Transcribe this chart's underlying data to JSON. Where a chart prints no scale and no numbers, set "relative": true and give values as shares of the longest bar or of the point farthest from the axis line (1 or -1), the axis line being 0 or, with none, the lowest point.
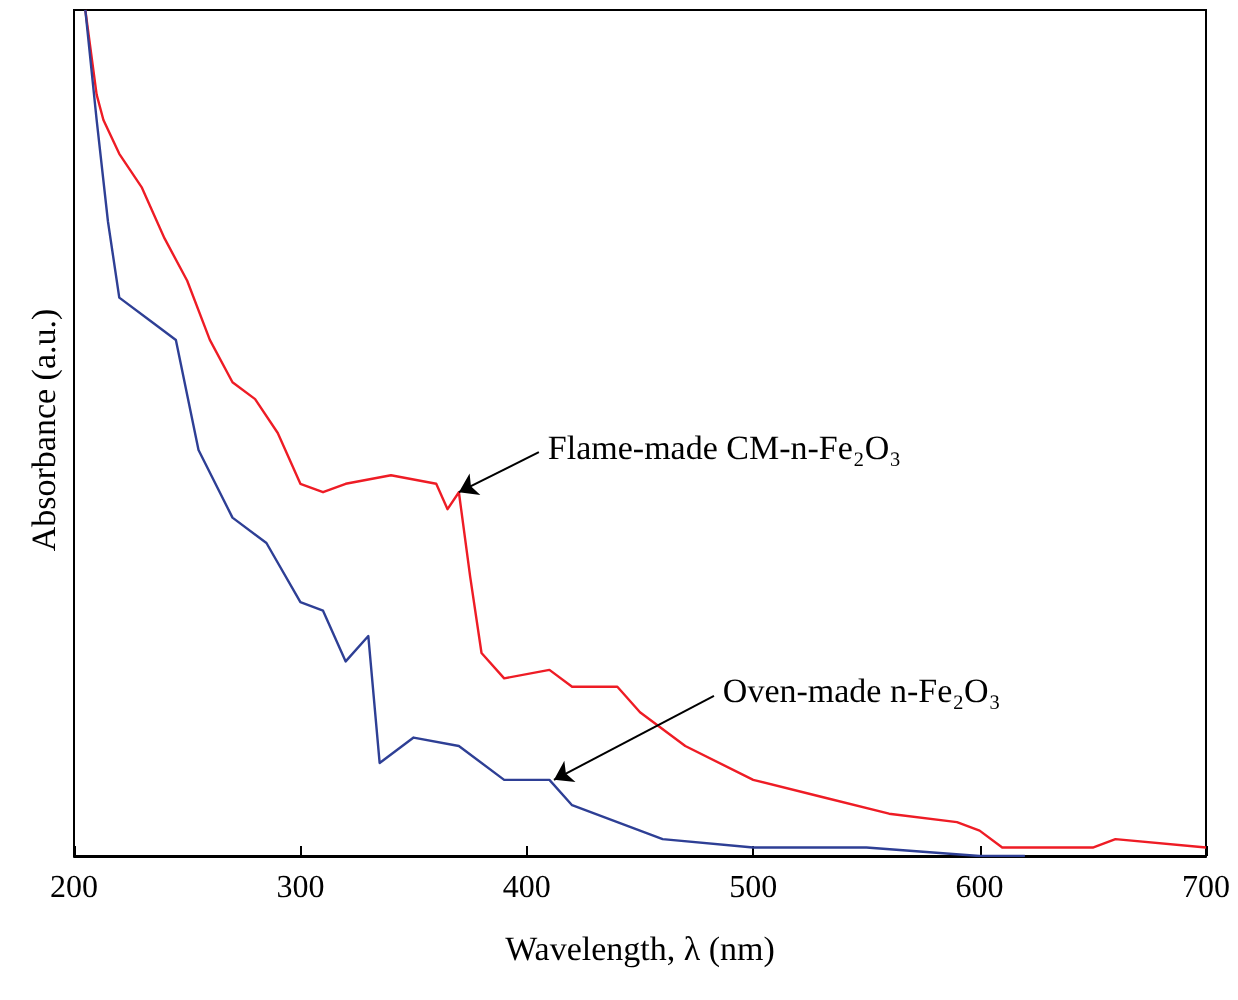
{
  "chart_data": {
    "type": "line",
    "xlabel": "Wavelength, λ (nm)",
    "ylabel": "Absorbance (a.u.)",
    "relative": true,
    "xlim": [
      200,
      700
    ],
    "xticks": [
      200,
      300,
      400,
      500,
      600,
      700
    ],
    "grid": false,
    "marker": "none",
    "line_style": "solid",
    "series": [
      {
        "color": "#ee1c25",
        "x": [
          205,
          210,
          213,
          220,
          230,
          240,
          250,
          260,
          270,
          280,
          290,
          300,
          310,
          320,
          340,
          360,
          365,
          370,
          375,
          380,
          390,
          410,
          420,
          440,
          450,
          470,
          500,
          530,
          560,
          590,
          600,
          610,
          650,
          660,
          700
        ],
        "values": [
          1.0,
          0.9,
          0.87,
          0.83,
          0.79,
          0.73,
          0.68,
          0.61,
          0.56,
          0.54,
          0.5,
          0.44,
          0.43,
          0.44,
          0.45,
          0.44,
          0.41,
          0.43,
          0.33,
          0.24,
          0.21,
          0.22,
          0.2,
          0.2,
          0.17,
          0.13,
          0.09,
          0.07,
          0.05,
          0.04,
          0.03,
          0.01,
          0.01,
          0.02,
          0.01
        ]
      },
      {
        "color": "#2e3f95",
        "x": [
          205,
          210,
          215,
          220,
          235,
          245,
          255,
          270,
          285,
          300,
          310,
          320,
          330,
          335,
          350,
          370,
          390,
          410,
          420,
          440,
          460,
          500,
          550,
          600,
          620
        ],
        "values": [
          1.0,
          0.87,
          0.75,
          0.66,
          0.63,
          0.61,
          0.48,
          0.4,
          0.37,
          0.3,
          0.29,
          0.23,
          0.26,
          0.11,
          0.14,
          0.13,
          0.09,
          0.09,
          0.06,
          0.04,
          0.02,
          0.01,
          0.01,
          0.0,
          0.0
        ]
      }
    ],
    "annotations": [
      {
        "text": "Flame-made CM-n-Fe₂O₃",
        "x": 370,
        "y": 0.43
      },
      {
        "text": "Oven-made n-Fe₂O₃",
        "x": 412,
        "y": 0.09
      }
    ]
  }
}
